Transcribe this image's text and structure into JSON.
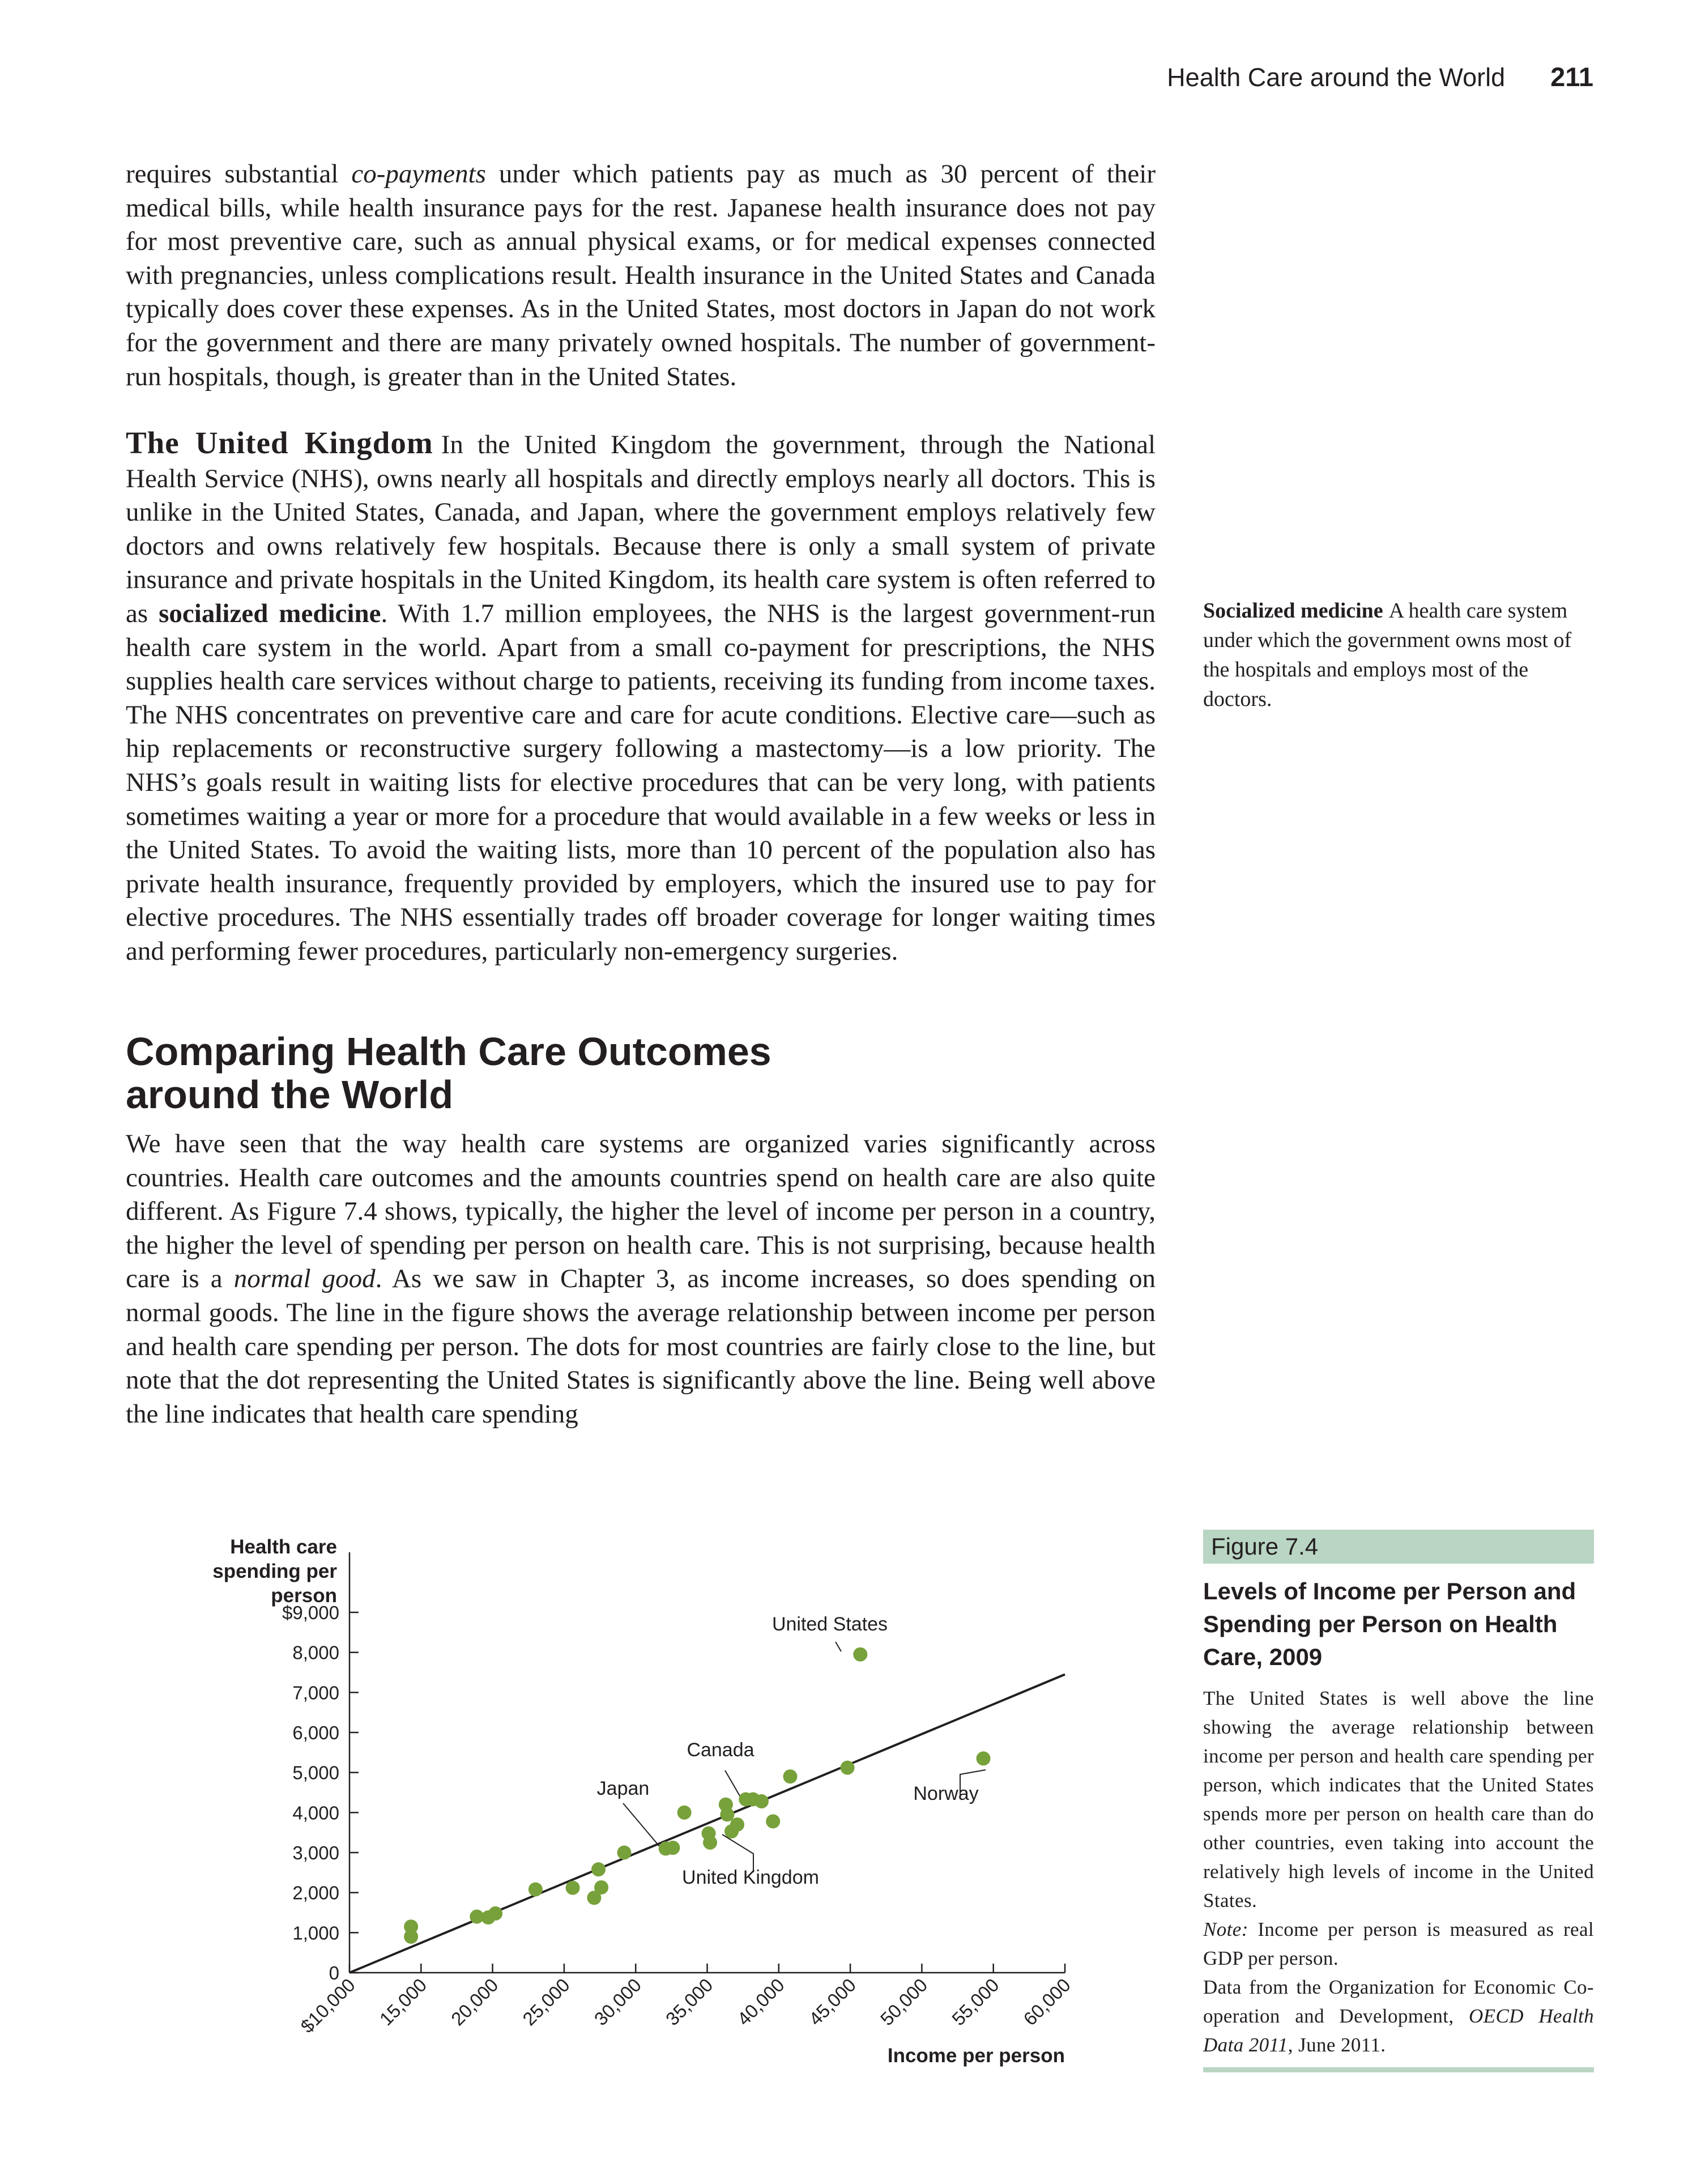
{
  "header": {
    "running_title": "Health Care around the World",
    "page_number": "211"
  },
  "body": {
    "p1": {
      "t1": "requires substantial ",
      "i1": "co-payments",
      "t2": " under which patients pay as much as 30 percent of their medical bills, while health insurance pays for the rest. Japanese health insurance does not pay for most preventive care, such as annual physical exams, or for medical expenses connected with pregnancies, unless complications result. Health insurance in the United States and Canada typically does cover these expenses. As in the United States, most doctors in Japan do not work for the government and there are many privately owned hospitals. The number of government-run hospitals, though, is greater than in the United States."
    },
    "p2": {
      "head": "The United Kingdom",
      "t1": "In the United Kingdom the government, through the National Health Service (NHS), owns nearly all hospitals and directly employs nearly all doctors. This is unlike in the United States, Canada, and Japan, where the government employs relatively few doctors and owns relatively few hospitals. Because there is only a small system of private insurance and private hospitals in the United Kingdom, its health care system is often referred to as ",
      "b1": "socialized medicine",
      "t2": ". With 1.7 million employees, the NHS is the largest government-run health care system in the world. Apart from a small co-payment for prescriptions, the NHS supplies health care services without charge to patients, receiving its funding from income taxes. The NHS concentrates on preventive care and care for acute conditions. Elective care—such as hip replacements or reconstructive surgery following a mastectomy—is a low priority. The NHS’s goals result in waiting lists for elective procedures that can be very long, with patients sometimes waiting a year or more for a procedure that would available in a few weeks or less in the United States. To avoid the waiting lists, more than 10 percent of the population also has private health insurance, frequently provided by employers, which the insured use to pay for elective procedures. The NHS essentially trades off broader coverage for longer waiting times and performing fewer procedures, particularly non-emergency surgeries."
    },
    "section_heading_line1": "Comparing Health Care Outcomes",
    "section_heading_line2": "around the World",
    "p3": {
      "t1": "We have seen that the way health care systems are organized varies significantly across countries. Health care outcomes and the amounts countries spend on health care are also quite different. As Figure 7.4 shows, typically, the higher the level of income per person in a country, the higher the level of spending per person on health care. This is not surprising, because health care is a ",
      "i1": "normal good",
      "t2": ". As we saw in Chapter 3, as income increases, so does spending on normal goods. The line in the figure shows the average relationship between income per person and health care spending per person. The dots for most countries are fairly close to the line, but note that the dot representing the United States is significantly above the line. Being well above the line indicates that health care spending"
    }
  },
  "margin_note": {
    "term": "Socialized medicine",
    "definition": "A health care system under which the government owns most of the hospitals and employs most of the doctors."
  },
  "figure": {
    "label": "Figure 7.4",
    "title": "Levels of Income per Person and Spending per Person on Health Care, 2009",
    "caption": "The United States is well above the line showing the average relationship between income per person and health care spending per person, which indicates that the United States spends more per person on health care than do other countries, even taking into account the relatively high levels of income in the United States.",
    "note_label": "Note:",
    "note_text": " Income per person is measured as real GDP per person.",
    "source_t1": "Data from the Organization for Economic Co-operation and Development, ",
    "source_italic": "OECD Health Data 2011",
    "source_t2": ", June 2011."
  },
  "colors": {
    "dot": "#77a13a",
    "line": "#231f20",
    "figure_tag_bg": "#b9d5c3"
  },
  "chart_data": {
    "type": "scatter",
    "ylabel_lines": [
      "Health care",
      "spending per",
      "person"
    ],
    "xlabel": "Income per person",
    "xlim": [
      10000,
      60000
    ],
    "ylim": [
      0,
      9000
    ],
    "x_ticks": [
      10000,
      15000,
      20000,
      25000,
      30000,
      35000,
      40000,
      45000,
      50000,
      55000,
      60000
    ],
    "x_tick_labels": [
      "$10,000",
      "15,000",
      "20,000",
      "25,000",
      "30,000",
      "35,000",
      "40,000",
      "45,000",
      "50,000",
      "55,000",
      "60,000"
    ],
    "y_ticks": [
      0,
      1000,
      2000,
      3000,
      4000,
      5000,
      6000,
      7000,
      8000,
      9000
    ],
    "y_tick_labels": [
      "0",
      "1,000",
      "2,000",
      "3,000",
      "4,000",
      "5,000",
      "6,000",
      "7,000",
      "8,000",
      "$9,000"
    ],
    "trend_line": {
      "x": [
        10000,
        60000
      ],
      "y": [
        0,
        7450
      ]
    },
    "points": [
      {
        "x": 14300,
        "y": 1150
      },
      {
        "x": 14300,
        "y": 900
      },
      {
        "x": 18900,
        "y": 1400
      },
      {
        "x": 19700,
        "y": 1380
      },
      {
        "x": 20200,
        "y": 1480
      },
      {
        "x": 23000,
        "y": 2080
      },
      {
        "x": 25600,
        "y": 2120
      },
      {
        "x": 27100,
        "y": 1870
      },
      {
        "x": 27400,
        "y": 2580
      },
      {
        "x": 27600,
        "y": 2130
      },
      {
        "x": 29200,
        "y": 3000
      },
      {
        "x": 32100,
        "y": 3100
      },
      {
        "x": 32600,
        "y": 3120
      },
      {
        "x": 33400,
        "y": 4000
      },
      {
        "x": 35100,
        "y": 3480
      },
      {
        "x": 35200,
        "y": 3250
      },
      {
        "x": 36300,
        "y": 4200
      },
      {
        "x": 36400,
        "y": 3950
      },
      {
        "x": 36700,
        "y": 3530
      },
      {
        "x": 37100,
        "y": 3700
      },
      {
        "x": 37700,
        "y": 4330
      },
      {
        "x": 38200,
        "y": 4330
      },
      {
        "x": 38800,
        "y": 4280
      },
      {
        "x": 39600,
        "y": 3780
      },
      {
        "x": 40800,
        "y": 4900
      },
      {
        "x": 44800,
        "y": 5120
      },
      {
        "x": 45700,
        "y": 7950
      },
      {
        "x": 54300,
        "y": 5350
      }
    ],
    "annotations": [
      {
        "text": "United States",
        "x": 45700,
        "y": 7950
      },
      {
        "text": "Canada",
        "x": 37900,
        "y": 4380
      },
      {
        "text": "Japan",
        "x": 32300,
        "y": 3120
      },
      {
        "text": "Norway",
        "x": 54300,
        "y": 5350
      },
      {
        "text": "United Kingdom",
        "x": 36400,
        "y": 3700
      }
    ]
  }
}
